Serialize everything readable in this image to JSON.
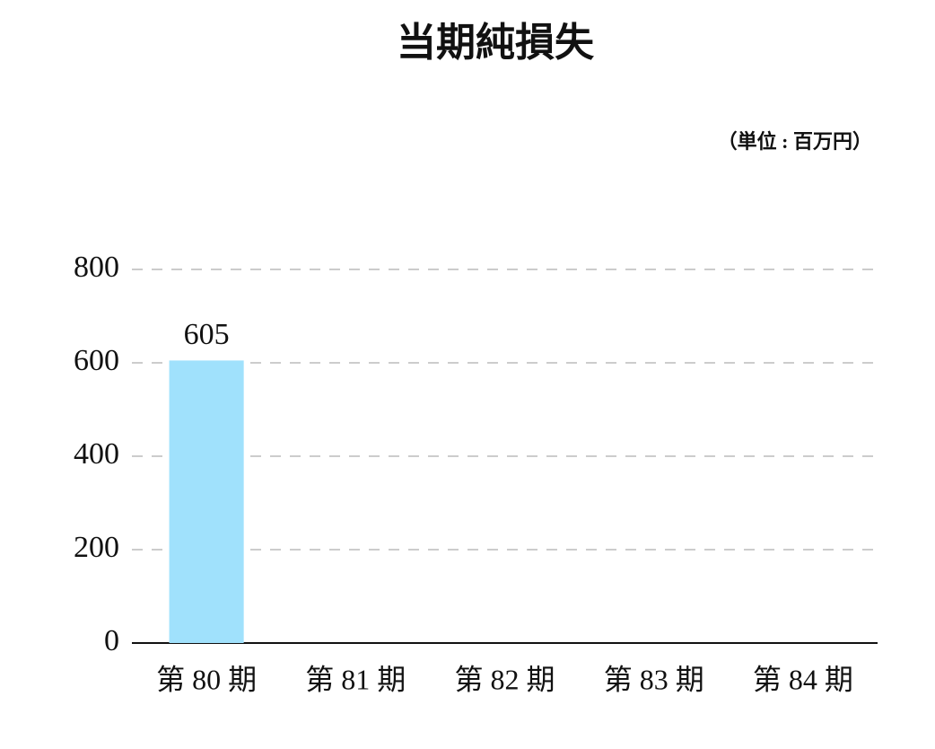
{
  "chart_data": {
    "type": "bar",
    "title": "当期純損失",
    "subtitle": "（単位 : 百万円）",
    "categories": [
      "第 80 期",
      "第 81 期",
      "第 82 期",
      "第 83 期",
      "第 84 期"
    ],
    "values": [
      605,
      null,
      null,
      null,
      null
    ],
    "color": "#a0e1fc",
    "ylim": [
      0,
      800
    ],
    "yticks": [
      0,
      200,
      400,
      600,
      800
    ],
    "grid": true
  }
}
